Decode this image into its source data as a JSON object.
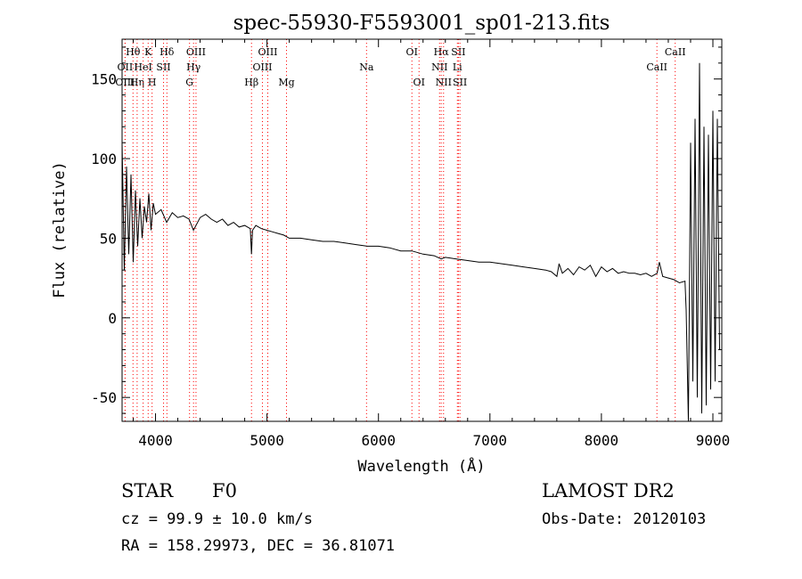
{
  "chart_data": {
    "type": "line",
    "title": "spec-55930-F5593001_sp01-213.fits",
    "xlabel": "Wavelength (Å)",
    "ylabel": "Flux (relative)",
    "xlim": [
      3700,
      9080
    ],
    "ylim": [
      -65,
      175
    ],
    "x_ticks": [
      4000,
      5000,
      6000,
      7000,
      8000,
      9000
    ],
    "y_ticks": [
      -50,
      0,
      50,
      100,
      150
    ],
    "grid": false,
    "legend": "none",
    "series": [
      {
        "line_color": "#000000",
        "x": [
          3700,
          3720,
          3740,
          3760,
          3780,
          3800,
          3820,
          3840,
          3860,
          3880,
          3900,
          3920,
          3940,
          3960,
          3980,
          4000,
          4050,
          4100,
          4150,
          4200,
          4250,
          4300,
          4340,
          4400,
          4450,
          4500,
          4550,
          4600,
          4650,
          4700,
          4750,
          4800,
          4850,
          4861,
          4870,
          4900,
          4950,
          5000,
          5050,
          5100,
          5150,
          5200,
          5300,
          5400,
          5500,
          5600,
          5700,
          5800,
          5900,
          6000,
          6100,
          6200,
          6300,
          6400,
          6500,
          6563,
          6600,
          6700,
          6800,
          6900,
          7000,
          7100,
          7200,
          7300,
          7400,
          7500,
          7550,
          7600,
          7620,
          7650,
          7700,
          7750,
          7800,
          7850,
          7900,
          7950,
          8000,
          8050,
          8100,
          8150,
          8200,
          8250,
          8300,
          8350,
          8400,
          8450,
          8500,
          8520,
          8550,
          8600,
          8650,
          8700,
          8750,
          8760,
          8780,
          8800,
          8820,
          8840,
          8860,
          8880,
          8900,
          8920,
          8940,
          8960,
          8980,
          9000,
          9020,
          9040,
          9060
        ],
        "y": [
          110,
          30,
          95,
          40,
          90,
          35,
          80,
          45,
          75,
          50,
          70,
          60,
          78,
          55,
          72,
          65,
          68,
          60,
          66,
          63,
          64,
          62,
          55,
          63,
          65,
          62,
          60,
          62,
          58,
          60,
          57,
          58,
          56,
          40,
          55,
          58,
          56,
          55,
          54,
          53,
          52,
          50,
          50,
          49,
          48,
          48,
          47,
          46,
          45,
          45,
          44,
          42,
          42,
          40,
          39,
          37,
          38,
          37,
          36,
          35,
          35,
          34,
          33,
          32,
          31,
          30,
          29,
          26,
          34,
          28,
          31,
          27,
          32,
          30,
          33,
          26,
          32,
          29,
          31,
          28,
          29,
          28,
          28,
          27,
          28,
          26,
          28,
          35,
          26,
          25,
          24,
          22,
          23,
          5,
          -65,
          110,
          -40,
          125,
          -50,
          160,
          -60,
          120,
          -55,
          115,
          -45,
          130,
          -40,
          125,
          -20
        ]
      }
    ],
    "line_markers": [
      {
        "label": "Hθ",
        "wavelength": 3798,
        "row": 1,
        "color": "#ff0000"
      },
      {
        "label": "OII",
        "wavelength": 3727,
        "row": 2,
        "color": "#ff0000"
      },
      {
        "label": "OIII",
        "wavelength": 3727,
        "row": 3,
        "color": "#ff0000"
      },
      {
        "label": "Hη",
        "wavelength": 3835,
        "row": 3,
        "color": "#ff0000"
      },
      {
        "label": "K",
        "wavelength": 3934,
        "row": 1,
        "color": "#ff0000"
      },
      {
        "label": "HeI",
        "wavelength": 3889,
        "row": 2,
        "color": "#ff0000"
      },
      {
        "label": "SII",
        "wavelength": 4072,
        "row": 2,
        "color": "#ff0000"
      },
      {
        "label": "H",
        "wavelength": 3969,
        "row": 3,
        "color": "#ff0000"
      },
      {
        "label": "Hδ",
        "wavelength": 4102,
        "row": 1,
        "color": "#ff0000"
      },
      {
        "label": "OIII",
        "wavelength": 4363,
        "row": 1,
        "color": "#ff0000"
      },
      {
        "label": "Hγ",
        "wavelength": 4341,
        "row": 2,
        "color": "#ff0000"
      },
      {
        "label": "G",
        "wavelength": 4305,
        "row": 3,
        "color": "#ff0000"
      },
      {
        "label": "Hβ",
        "wavelength": 4861,
        "row": 3,
        "color": "#ff0000"
      },
      {
        "label": "OIII",
        "wavelength": 5007,
        "row": 1,
        "color": "#ff0000"
      },
      {
        "label": "OIII",
        "wavelength": 4959,
        "row": 2,
        "color": "#ff0000"
      },
      {
        "label": "Mg",
        "wavelength": 5175,
        "row": 3,
        "color": "#ff0000"
      },
      {
        "label": "Na",
        "wavelength": 5893,
        "row": 2,
        "color": "#ff0000"
      },
      {
        "label": "OI",
        "wavelength": 6300,
        "row": 1,
        "color": "#ff0000"
      },
      {
        "label": "OI",
        "wavelength": 6364,
        "row": 3,
        "color": "#ff0000"
      },
      {
        "label": "Hα",
        "wavelength": 6563,
        "row": 1,
        "color": "#ff0000"
      },
      {
        "label": "SII",
        "wavelength": 6717,
        "row": 1,
        "color": "#ff0000"
      },
      {
        "label": "NII",
        "wavelength": 6548,
        "row": 2,
        "color": "#ff0000"
      },
      {
        "label": "Li",
        "wavelength": 6708,
        "row": 2,
        "color": "#ff0000"
      },
      {
        "label": "NII",
        "wavelength": 6584,
        "row": 3,
        "color": "#ff0000"
      },
      {
        "label": "SII",
        "wavelength": 6731,
        "row": 3,
        "color": "#ff0000"
      },
      {
        "label": "CaII",
        "wavelength": 8662,
        "row": 1,
        "color": "#ff0000"
      },
      {
        "label": "CaII",
        "wavelength": 8498,
        "row": 2,
        "color": "#ff0000"
      }
    ]
  },
  "info": {
    "class_label": "STAR",
    "subclass": "F0",
    "survey": "LAMOST DR2",
    "redshift": "cz = 99.9 ± 10.0 km/s",
    "obs_date": "Obs-Date: 20120103",
    "coords": "RA = 158.29973, DEC =  36.81071"
  }
}
